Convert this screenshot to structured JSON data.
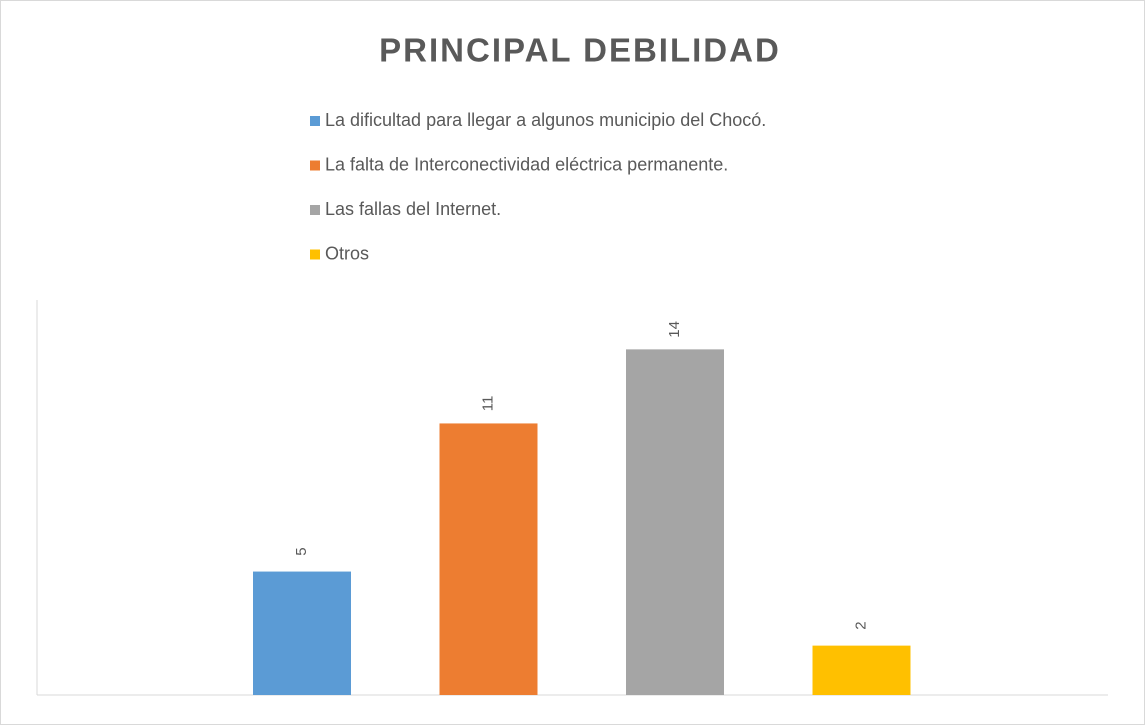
{
  "chart_data": {
    "type": "bar",
    "title": "PRINCIPAL DEBILIDAD",
    "categories": [
      null
    ],
    "series": [
      {
        "name": "La dificultad para llegar a algunos municipio del Chocó.",
        "color": "#5b9bd5",
        "values": [
          5
        ]
      },
      {
        "name": "La falta de Interconectividad eléctrica permanente.",
        "color": "#ed7d31",
        "values": [
          11
        ]
      },
      {
        "name": "Las fallas del Internet.",
        "color": "#a5a5a5",
        "values": [
          14
        ]
      },
      {
        "name": "Otros",
        "color": "#ffc000",
        "values": [
          2
        ]
      }
    ],
    "ylim": [
      0,
      16
    ]
  }
}
